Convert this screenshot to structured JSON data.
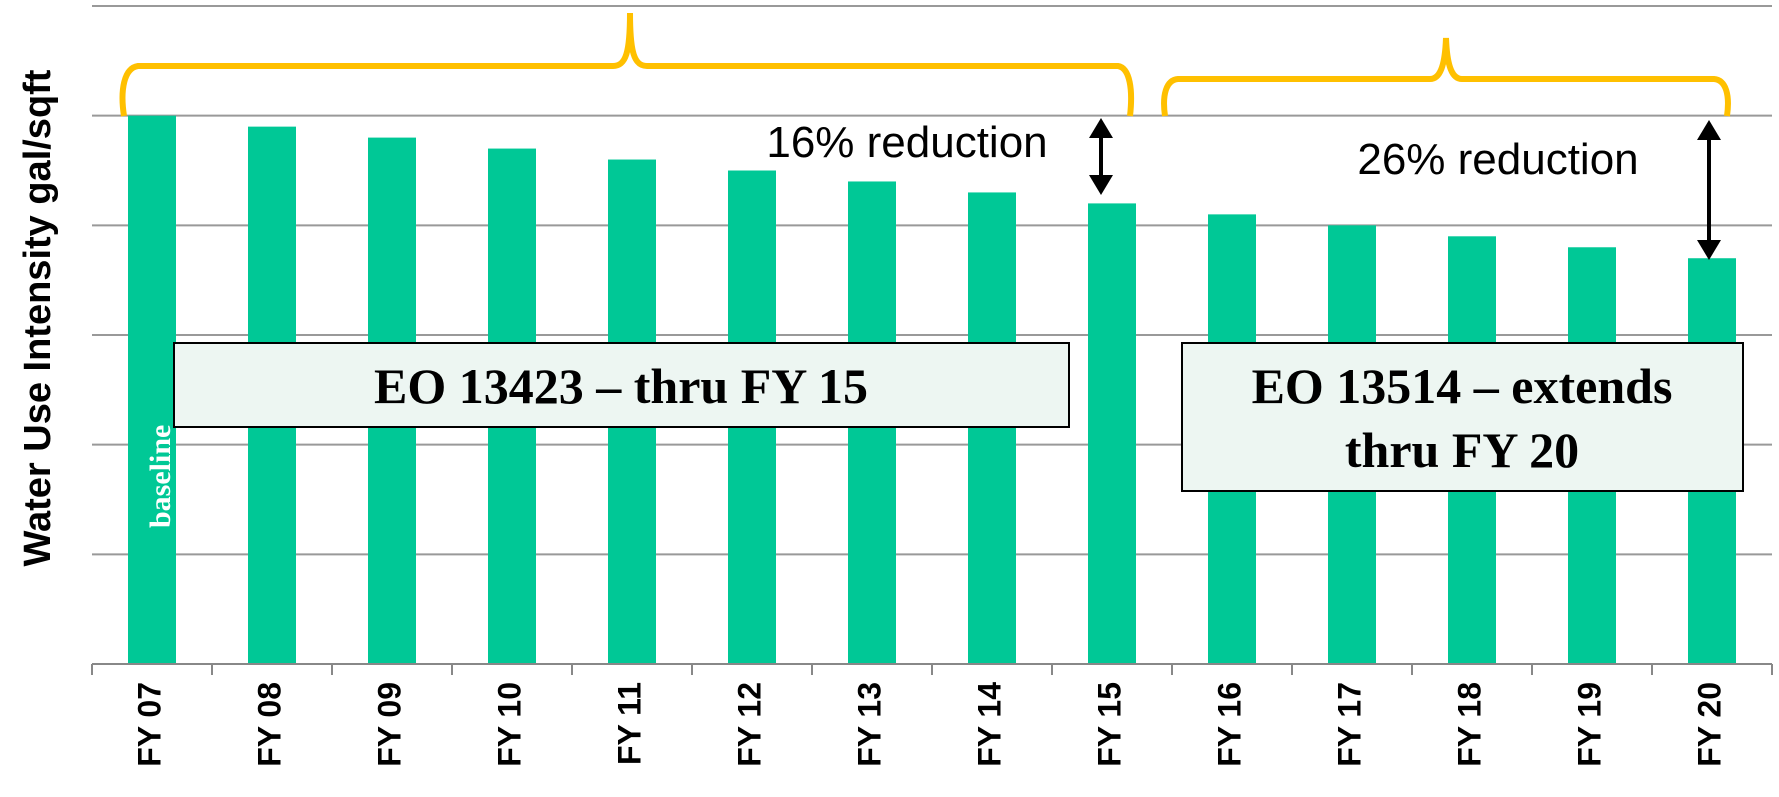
{
  "chart_data": {
    "type": "bar",
    "ylabel": "Water Use Intensity gal/sqft",
    "categories": [
      "FY 07",
      "FY 08",
      "FY 09",
      "FY 10",
      "FY 11",
      "FY 12",
      "FY 13",
      "FY 14",
      "FY 15",
      "FY 16",
      "FY 17",
      "FY 18",
      "FY 19",
      "FY 20"
    ],
    "values": [
      100,
      98,
      96,
      94,
      92,
      90,
      88,
      86,
      84,
      82,
      80,
      78,
      76,
      74
    ],
    "ylim": [
      0,
      120
    ],
    "grid": true,
    "bar_color": "#00C896",
    "bar_labels": [
      {
        "category": "FY 07",
        "text": "baseline"
      }
    ],
    "annotations": {
      "reduction_1": "16% reduction",
      "reduction_2": "26% reduction",
      "box_1": "EO 13423 – thru FY 15",
      "box_2_line1": "EO 13514 – extends",
      "box_2_line2": "thru FY 20"
    },
    "colors": {
      "bracket": "#FFC000",
      "box_fill": "#EDF6F2",
      "grid": "#999999"
    }
  }
}
